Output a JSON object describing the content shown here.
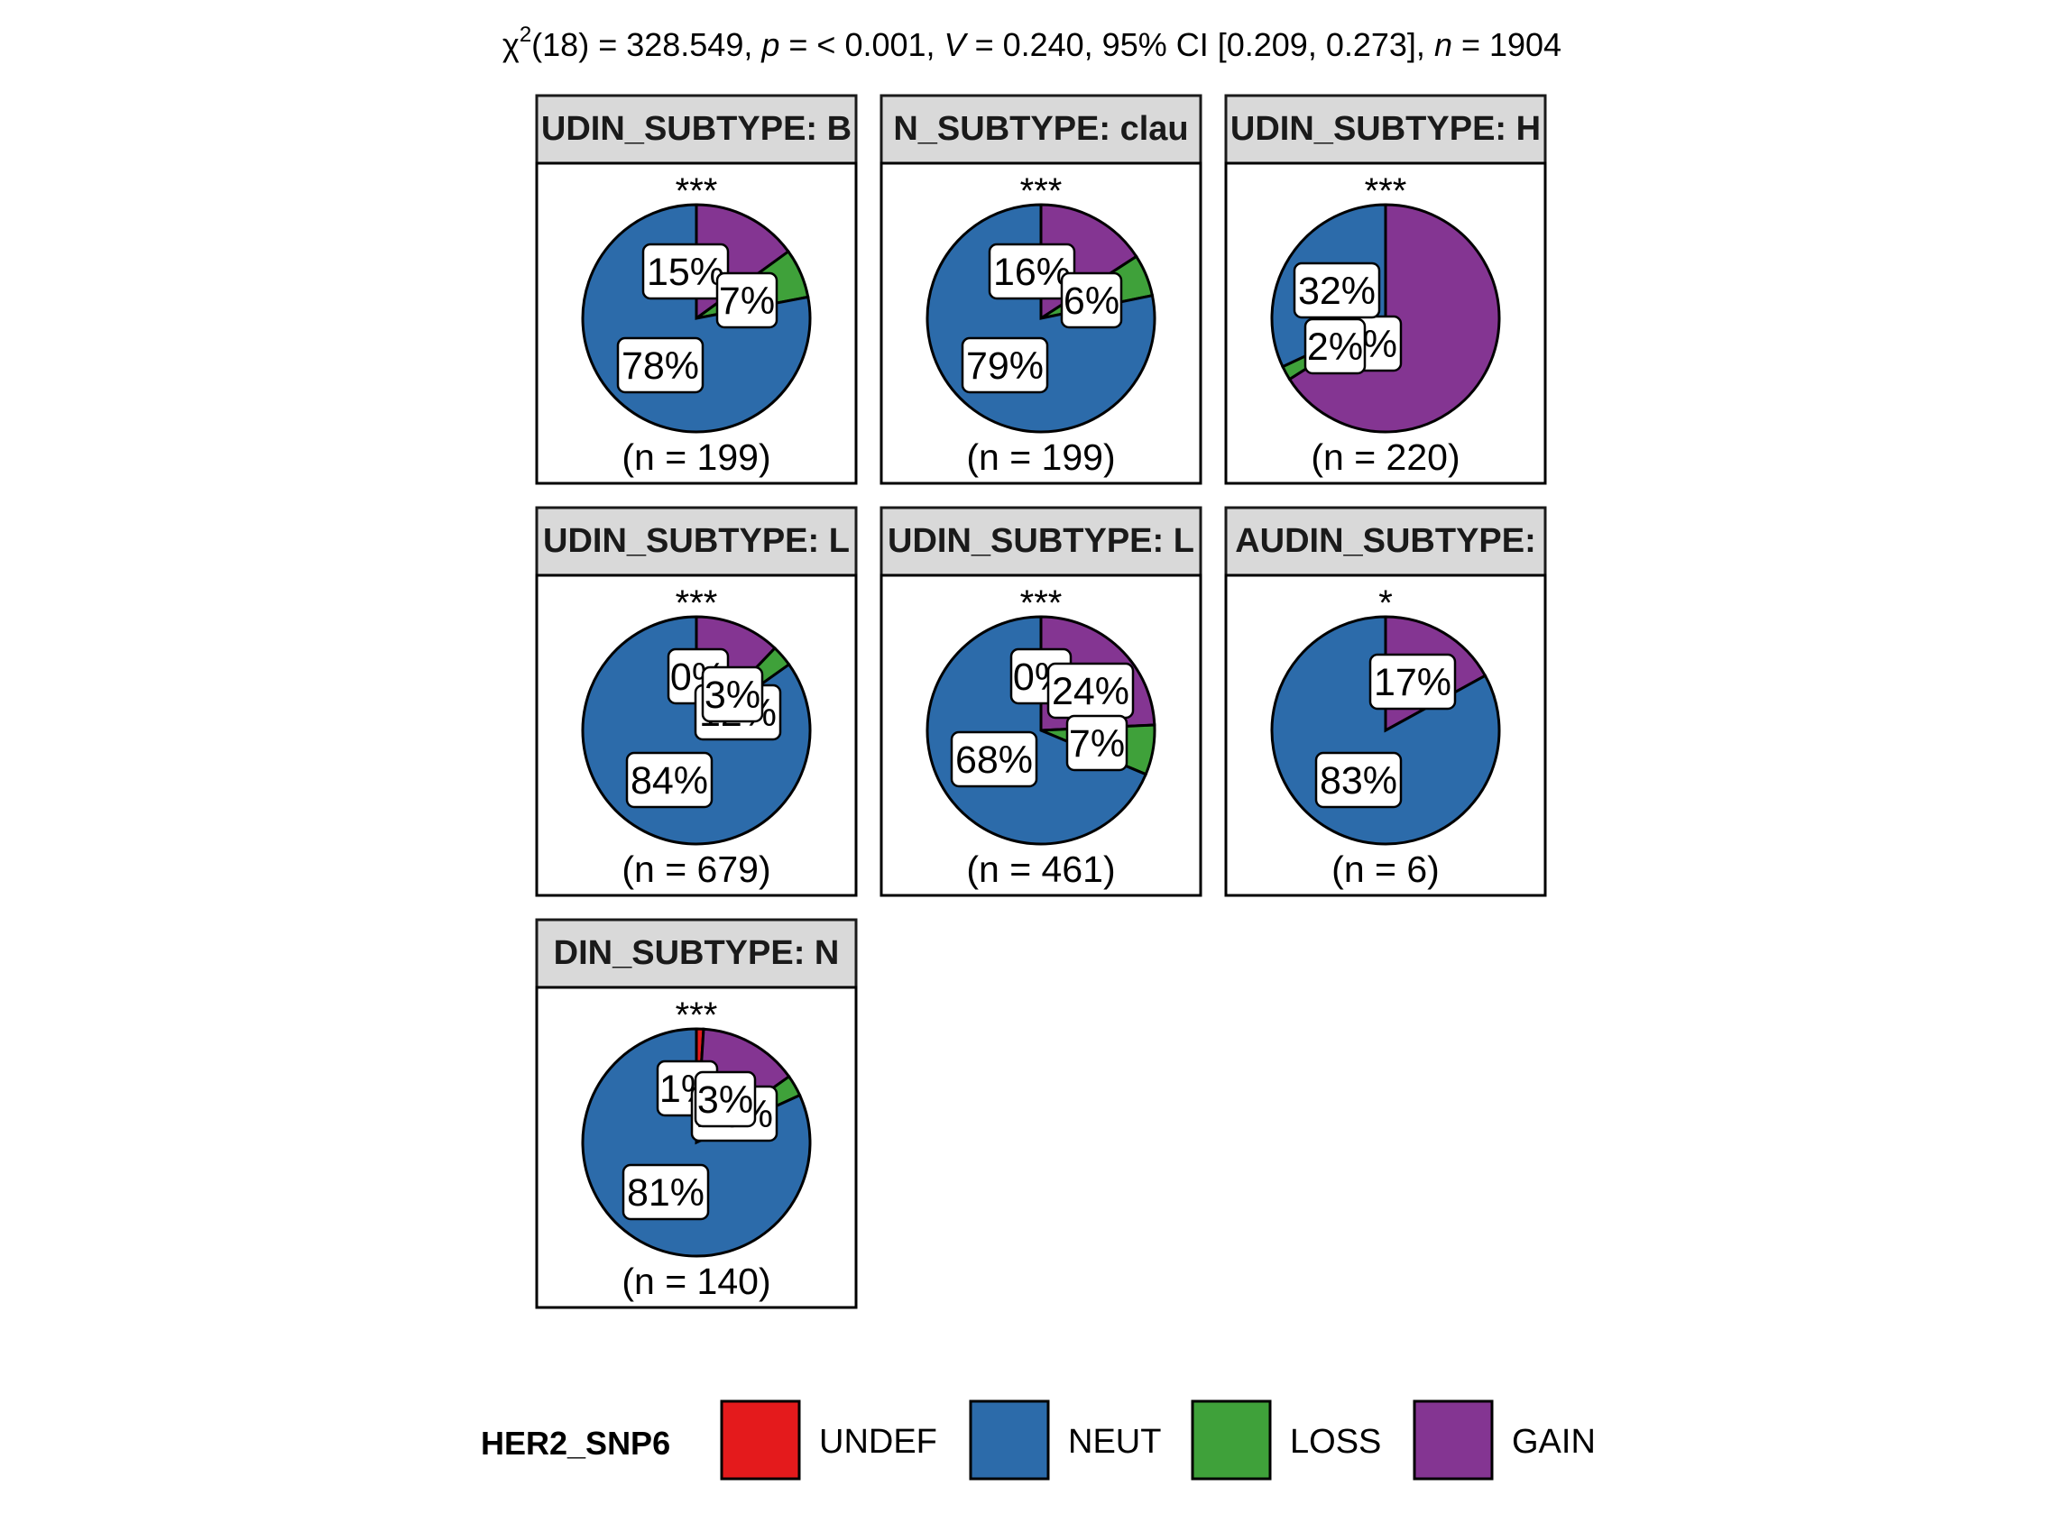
{
  "chart_data": {
    "type": "pie",
    "title": {
      "chi": "χ",
      "sup": "2",
      "df": "(18) = 328.549, ",
      "p_sym": "p",
      "p_val": " = < 0.001, ",
      "v_sym": "V",
      "v_val": " = 0.240, 95% CI [0.209, 0.273], ",
      "n_sym": "n",
      "n_val": " = 1904"
    },
    "legend": {
      "title": "HER2_SNP6",
      "categories": [
        "UNDEF",
        "NEUT",
        "LOSS",
        "GAIN"
      ],
      "colors": {
        "UNDEF": "#E41A1C",
        "NEUT": "#2C6BAA",
        "LOSS": "#3FA13A",
        "GAIN": "#843592"
      }
    },
    "panels": [
      {
        "strip": "UDIN_SUBTYPE: B",
        "sig": "***",
        "n_label": "(n = 199)",
        "slices": [
          {
            "category": "GAIN",
            "value": 15,
            "label": "15%"
          },
          {
            "category": "LOSS",
            "value": 7,
            "label": "7%"
          },
          {
            "category": "NEUT",
            "value": 78,
            "label": "78%"
          }
        ]
      },
      {
        "strip": "N_SUBTYPE: clau",
        "sig": "***",
        "n_label": "(n = 199)",
        "slices": [
          {
            "category": "GAIN",
            "value": 16,
            "label": "16%"
          },
          {
            "category": "LOSS",
            "value": 6,
            "label": "6%"
          },
          {
            "category": "NEUT",
            "value": 79,
            "label": "79%"
          }
        ]
      },
      {
        "strip": "UDIN_SUBTYPE: H",
        "sig": "***",
        "n_label": "(n = 220)",
        "slices": [
          {
            "category": "GAIN",
            "value": 66,
            "label": "66%"
          },
          {
            "category": "LOSS",
            "value": 2,
            "label": "2%"
          },
          {
            "category": "NEUT",
            "value": 32,
            "label": "32%"
          }
        ]
      },
      {
        "strip": "UDIN_SUBTYPE: L",
        "sig": "***",
        "n_label": "(n = 679)",
        "slices": [
          {
            "category": "UNDEF",
            "value": 0,
            "label": "0%"
          },
          {
            "category": "GAIN",
            "value": 12,
            "label": "12%"
          },
          {
            "category": "LOSS",
            "value": 3,
            "label": "3%"
          },
          {
            "category": "NEUT",
            "value": 84,
            "label": "84%"
          }
        ]
      },
      {
        "strip": "UDIN_SUBTYPE: L",
        "sig": "***",
        "n_label": "(n = 461)",
        "slices": [
          {
            "category": "UNDEF",
            "value": 0,
            "label": "0%"
          },
          {
            "category": "GAIN",
            "value": 24,
            "label": "24%"
          },
          {
            "category": "LOSS",
            "value": 7,
            "label": "7%"
          },
          {
            "category": "NEUT",
            "value": 68,
            "label": "68%"
          }
        ]
      },
      {
        "strip": "AUDIN_SUBTYPE: ",
        "sig": "*",
        "n_label": "(n = 6)",
        "slices": [
          {
            "category": "GAIN",
            "value": 17,
            "label": "17%"
          },
          {
            "category": "NEUT",
            "value": 83,
            "label": "83%"
          }
        ]
      },
      {
        "strip": "DIN_SUBTYPE: N",
        "sig": "***",
        "n_label": "(n = 140)",
        "slices": [
          {
            "category": "UNDEF",
            "value": 1,
            "label": "1%"
          },
          {
            "category": "GAIN",
            "value": 14,
            "label": "14%"
          },
          {
            "category": "LOSS",
            "value": 3,
            "label": "3%"
          },
          {
            "category": "NEUT",
            "value": 81,
            "label": "81%"
          }
        ]
      }
    ]
  }
}
